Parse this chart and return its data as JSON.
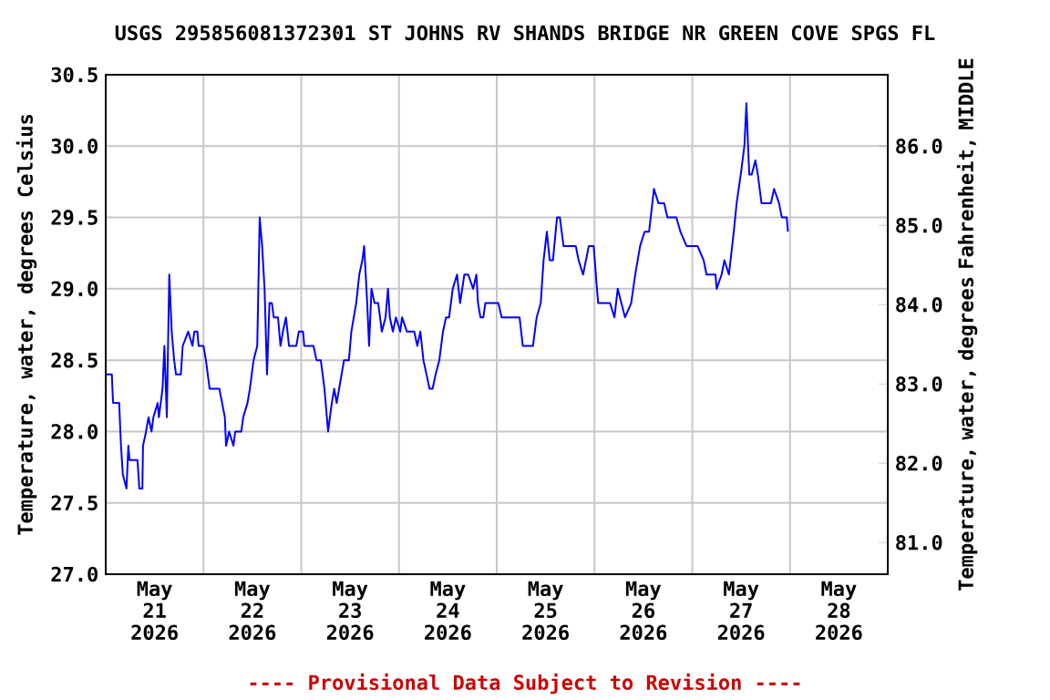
{
  "chart_data": {
    "type": "line",
    "title": "USGS 295856081372301 ST JOHNS RV SHANDS BRIDGE NR GREEN COVE SPGS FL",
    "ylabel": "Temperature, water, degrees Celsius",
    "y2label": "Temperature, water, degrees Fahrenheit, MIDDLE",
    "annotations": [
      "---- Provisional Data Subject to Revision ----"
    ],
    "xlim": [
      "2026-05-21T00:00",
      "2026-05-29T00:00"
    ],
    "xticks": [
      {
        "value": "2026-05-21T12:00",
        "label": "May 21 2026"
      },
      {
        "value": "2026-05-22T12:00",
        "label": "May 22 2026"
      },
      {
        "value": "2026-05-23T12:00",
        "label": "May 23 2026"
      },
      {
        "value": "2026-05-24T12:00",
        "label": "May 24 2026"
      },
      {
        "value": "2026-05-25T12:00",
        "label": "May 25 2026"
      },
      {
        "value": "2026-05-26T12:00",
        "label": "May 26 2026"
      },
      {
        "value": "2026-05-27T12:00",
        "label": "May 27 2026"
      },
      {
        "value": "2026-05-28T12:00",
        "label": "May 28 2026"
      },
      {
        "value": "2026-05-22T00:00",
        "label": null
      },
      {
        "value": "2026-05-23T00:00",
        "label": null
      },
      {
        "value": "2026-05-24T00:00",
        "label": null
      },
      {
        "value": "2026-05-25T00:00",
        "label": null
      },
      {
        "value": "2026-05-26T00:00",
        "label": null
      },
      {
        "value": "2026-05-27T00:00",
        "label": null
      },
      {
        "value": "2026-05-28T00:00",
        "label": null
      }
    ],
    "ylim": [
      27.0,
      30.5
    ],
    "yticks": [
      {
        "value": 27,
        "label": "27.0"
      },
      {
        "value": 27.5,
        "label": "27.5"
      },
      {
        "value": 28,
        "label": "28.0"
      },
      {
        "value": 28.5,
        "label": "28.5"
      },
      {
        "value": 29,
        "label": "29.0"
      },
      {
        "value": 29.5,
        "label": "29.5"
      },
      {
        "value": 30,
        "label": "30.0"
      },
      {
        "value": 30.5,
        "label": "30.5"
      }
    ],
    "y2lim": [
      80.6,
      86.9
    ],
    "y2ticks": [
      {
        "value": 81,
        "label": "81.0"
      },
      {
        "value": 82,
        "label": "82.0"
      },
      {
        "value": 83,
        "label": "83.0"
      },
      {
        "value": 84,
        "label": "84.0"
      },
      {
        "value": 85,
        "label": "85.0"
      },
      {
        "value": 86,
        "label": "86.0"
      }
    ],
    "grid": true,
    "marker": "none",
    "line_style": "solid",
    "series": [
      {
        "color": "#0000ff",
        "x": [
          "2026-05-21T00:00",
          "2026-05-21T01:30",
          "2026-05-21T01:48",
          "2026-05-21T03:18",
          "2026-05-21T03:45",
          "2026-05-21T04:12",
          "2026-05-21T05:06",
          "2026-05-21T05:33",
          "2026-05-21T05:51",
          "2026-05-21T07:48",
          "2026-05-21T08:15",
          "2026-05-21T09:00",
          "2026-05-21T09:09",
          "2026-05-21T09:54",
          "2026-05-21T10:30",
          "2026-05-21T11:15",
          "2026-05-21T11:42",
          "2026-05-21T12:45",
          "2026-05-21T13:03",
          "2026-05-21T13:57",
          "2026-05-21T14:24",
          "2026-05-21T15:00",
          "2026-05-21T15:36",
          "2026-05-21T16:12",
          "2026-05-21T16:48",
          "2026-05-21T17:15",
          "2026-05-21T18:27",
          "2026-05-21T18:54",
          "2026-05-21T20:15",
          "2026-05-21T21:18",
          "2026-05-21T21:45",
          "2026-05-21T22:30",
          "2026-05-21T22:48",
          "2026-05-22T00:00",
          "2026-05-22T00:36",
          "2026-05-22T01:30",
          "2026-05-22T03:54",
          "2026-05-22T05:15",
          "2026-05-22T05:33",
          "2026-05-22T06:18",
          "2026-05-22T07:21",
          "2026-05-22T07:48",
          "2026-05-22T09:18",
          "2026-05-22T09:45",
          "2026-05-22T10:48",
          "2026-05-22T11:24",
          "2026-05-22T12:18",
          "2026-05-22T13:12",
          "2026-05-22T13:48",
          "2026-05-22T14:24",
          "2026-05-22T15:00",
          "2026-05-22T15:36",
          "2026-05-22T16:12",
          "2026-05-22T16:48",
          "2026-05-22T17:15",
          "2026-05-22T18:18",
          "2026-05-22T18:54",
          "2026-05-22T19:30",
          "2026-05-22T20:15",
          "2026-05-22T21:00",
          "2026-05-22T22:48",
          "2026-05-22T23:24",
          "2026-05-23T00:27",
          "2026-05-23T00:45",
          "2026-05-23T03:00",
          "2026-05-23T03:45",
          "2026-05-23T04:48",
          "2026-05-23T05:42",
          "2026-05-23T06:18",
          "2026-05-23T06:36",
          "2026-05-23T07:30",
          "2026-05-23T08:06",
          "2026-05-23T08:42",
          "2026-05-23T09:18",
          "2026-05-23T09:54",
          "2026-05-23T10:30",
          "2026-05-23T11:42",
          "2026-05-23T12:18",
          "2026-05-23T13:30",
          "2026-05-23T14:15",
          "2026-05-23T15:00",
          "2026-05-23T15:27",
          "2026-05-23T16:12",
          "2026-05-23T16:39",
          "2026-05-23T17:15",
          "2026-05-23T18:00",
          "2026-05-23T18:54",
          "2026-05-23T19:48",
          "2026-05-23T20:42",
          "2026-05-23T21:18",
          "2026-05-23T21:45",
          "2026-05-23T22:30",
          "2026-05-23T23:15",
          "2026-05-24T00:18",
          "2026-05-24T00:45",
          "2026-05-24T01:57",
          "2026-05-24T03:45",
          "2026-05-24T04:30",
          "2026-05-24T05:15",
          "2026-05-24T06:00",
          "2026-05-24T06:45",
          "2026-05-24T07:30",
          "2026-05-24T08:15",
          "2026-05-24T09:00",
          "2026-05-24T09:54",
          "2026-05-24T10:48",
          "2026-05-24T11:33",
          "2026-05-24T12:18",
          "2026-05-24T13:12",
          "2026-05-24T14:15",
          "2026-05-24T15:00",
          "2026-05-24T16:03",
          "2026-05-24T17:00",
          "2026-05-24T18:12",
          "2026-05-24T19:00",
          "2026-05-24T19:24",
          "2026-05-24T20:00",
          "2026-05-24T20:42",
          "2026-05-24T21:12",
          "2026-05-25T00:24",
          "2026-05-25T01:12",
          "2026-05-25T05:36",
          "2026-05-25T06:24",
          "2026-05-25T07:06",
          "2026-05-25T08:54",
          "2026-05-25T09:48",
          "2026-05-25T10:48",
          "2026-05-25T11:30",
          "2026-05-25T12:18",
          "2026-05-25T13:00",
          "2026-05-25T13:48",
          "2026-05-25T14:48",
          "2026-05-25T15:30",
          "2026-05-25T16:24",
          "2026-05-25T19:24",
          "2026-05-25T20:06",
          "2026-05-25T21:12",
          "2026-05-25T22:36",
          "2026-05-25T23:48",
          "2026-05-26T00:36",
          "2026-05-26T00:54",
          "2026-05-26T03:48",
          "2026-05-26T04:54",
          "2026-05-26T05:42",
          "2026-05-26T07:30",
          "2026-05-26T09:00",
          "2026-05-26T10:00",
          "2026-05-26T11:12",
          "2026-05-26T12:18",
          "2026-05-26T13:24",
          "2026-05-26T14:12",
          "2026-05-26T14:36",
          "2026-05-26T15:42",
          "2026-05-26T17:06",
          "2026-05-26T17:54",
          "2026-05-26T20:06",
          "2026-05-26T21:06",
          "2026-05-26T22:36",
          "2026-05-27T01:18",
          "2026-05-27T02:48",
          "2026-05-27T03:30",
          "2026-05-27T05:42",
          "2026-05-27T06:00",
          "2026-05-27T07:12",
          "2026-05-27T07:54",
          "2026-05-27T09:00",
          "2026-05-27T10:12",
          "2026-05-27T10:54",
          "2026-05-27T11:54",
          "2026-05-27T12:48",
          "2026-05-27T13:18",
          "2026-05-27T13:42",
          "2026-05-27T14:00",
          "2026-05-27T14:36",
          "2026-05-27T15:30",
          "2026-05-27T16:06",
          "2026-05-27T17:00",
          "2026-05-27T19:18",
          "2026-05-27T20:06",
          "2026-05-27T21:18",
          "2026-05-27T22:00",
          "2026-05-27T23:12",
          "2026-05-27T23:30"
        ],
        "values": [
          28.4,
          28.4,
          28.2,
          28.2,
          27.9,
          27.7,
          27.6,
          27.9,
          27.8,
          27.8,
          27.6,
          27.6,
          27.9,
          28.0,
          28.1,
          28.0,
          28.1,
          28.2,
          28.1,
          28.3,
          28.6,
          28.1,
          29.1,
          28.7,
          28.5,
          28.4,
          28.4,
          28.6,
          28.7,
          28.6,
          28.7,
          28.7,
          28.6,
          28.6,
          28.5,
          28.3,
          28.3,
          28.1,
          27.9,
          28.0,
          27.9,
          28.0,
          28.0,
          28.1,
          28.2,
          28.3,
          28.5,
          28.6,
          29.5,
          29.3,
          29.0,
          28.4,
          28.9,
          28.9,
          28.8,
          28.8,
          28.6,
          28.7,
          28.8,
          28.6,
          28.6,
          28.7,
          28.7,
          28.6,
          28.6,
          28.5,
          28.5,
          28.3,
          28.1,
          28.0,
          28.2,
          28.3,
          28.2,
          28.3,
          28.4,
          28.5,
          28.5,
          28.7,
          28.9,
          29.1,
          29.2,
          29.3,
          28.9,
          28.6,
          29.0,
          28.9,
          28.9,
          28.7,
          28.8,
          29.0,
          28.8,
          28.7,
          28.8,
          28.7,
          28.8,
          28.7,
          28.7,
          28.6,
          28.7,
          28.5,
          28.4,
          28.3,
          28.3,
          28.4,
          28.5,
          28.7,
          28.8,
          28.8,
          29.0,
          29.1,
          28.9,
          29.1,
          29.1,
          29.0,
          29.1,
          28.9,
          28.8,
          28.8,
          28.9,
          28.9,
          28.8,
          28.8,
          28.6,
          28.6,
          28.6,
          28.8,
          28.9,
          29.2,
          29.4,
          29.2,
          29.2,
          29.5,
          29.5,
          29.3,
          29.3,
          29.2,
          29.1,
          29.3,
          29.3,
          29.0,
          28.9,
          28.9,
          28.8,
          29.0,
          28.8,
          28.9,
          29.1,
          29.3,
          29.4,
          29.4,
          29.6,
          29.7,
          29.6,
          29.6,
          29.5,
          29.5,
          29.4,
          29.3,
          29.3,
          29.2,
          29.1,
          29.1,
          29.0,
          29.1,
          29.2,
          29.1,
          29.4,
          29.6,
          29.8,
          30.0,
          30.3,
          30.0,
          29.8,
          29.8,
          29.9,
          29.8,
          29.6,
          29.6,
          29.7,
          29.6,
          29.5,
          29.5,
          29.4
        ]
      }
    ]
  }
}
